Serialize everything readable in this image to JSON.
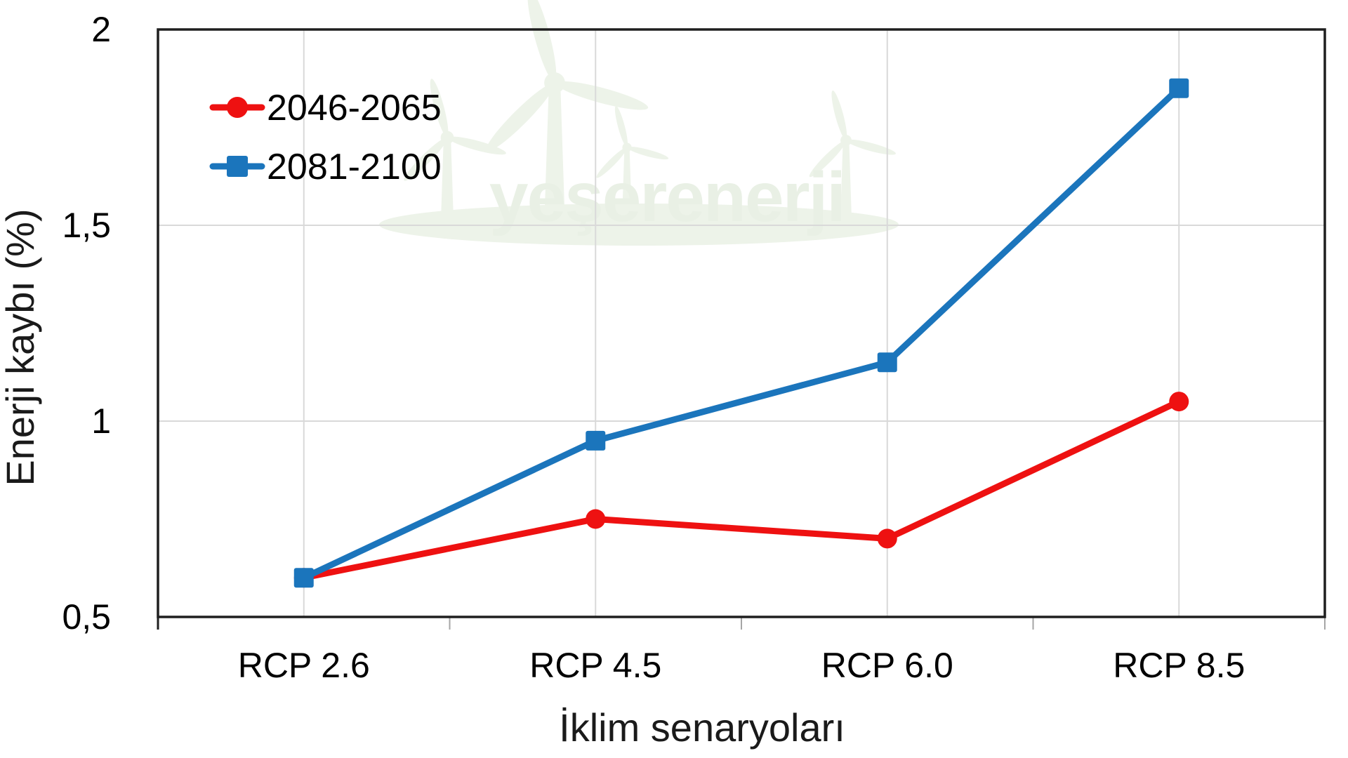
{
  "chart_data": {
    "type": "line",
    "categories": [
      "RCP 2.6",
      "RCP 4.5",
      "RCP 6.0",
      "RCP 8.5"
    ],
    "series": [
      {
        "name": "2046-2065",
        "values": [
          0.6,
          0.75,
          0.7,
          1.05
        ],
        "color": "#ee1111",
        "marker": "circle"
      },
      {
        "name": "2081-2100",
        "values": [
          0.6,
          0.95,
          1.15,
          1.85
        ],
        "color": "#1b75bc",
        "marker": "square"
      }
    ],
    "xlabel": "İklim senaryoları",
    "ylabel": "Enerji kaybı (%)",
    "ylim": [
      0.5,
      2
    ],
    "yticks": [
      0.5,
      1,
      1.5,
      2
    ],
    "ytick_labels": [
      "0,5",
      "1",
      "1,5",
      "2"
    ],
    "grid": true,
    "legend_position": "top-left",
    "colors": {
      "grid": "#d9d9d9",
      "frame": "#1f1f1f",
      "tick": "#a6a6a6",
      "text": "#000000"
    }
  },
  "watermark": {
    "text": "yeşerenerji",
    "color": "#e9f0e5",
    "shape_color": "#edf3e9"
  }
}
